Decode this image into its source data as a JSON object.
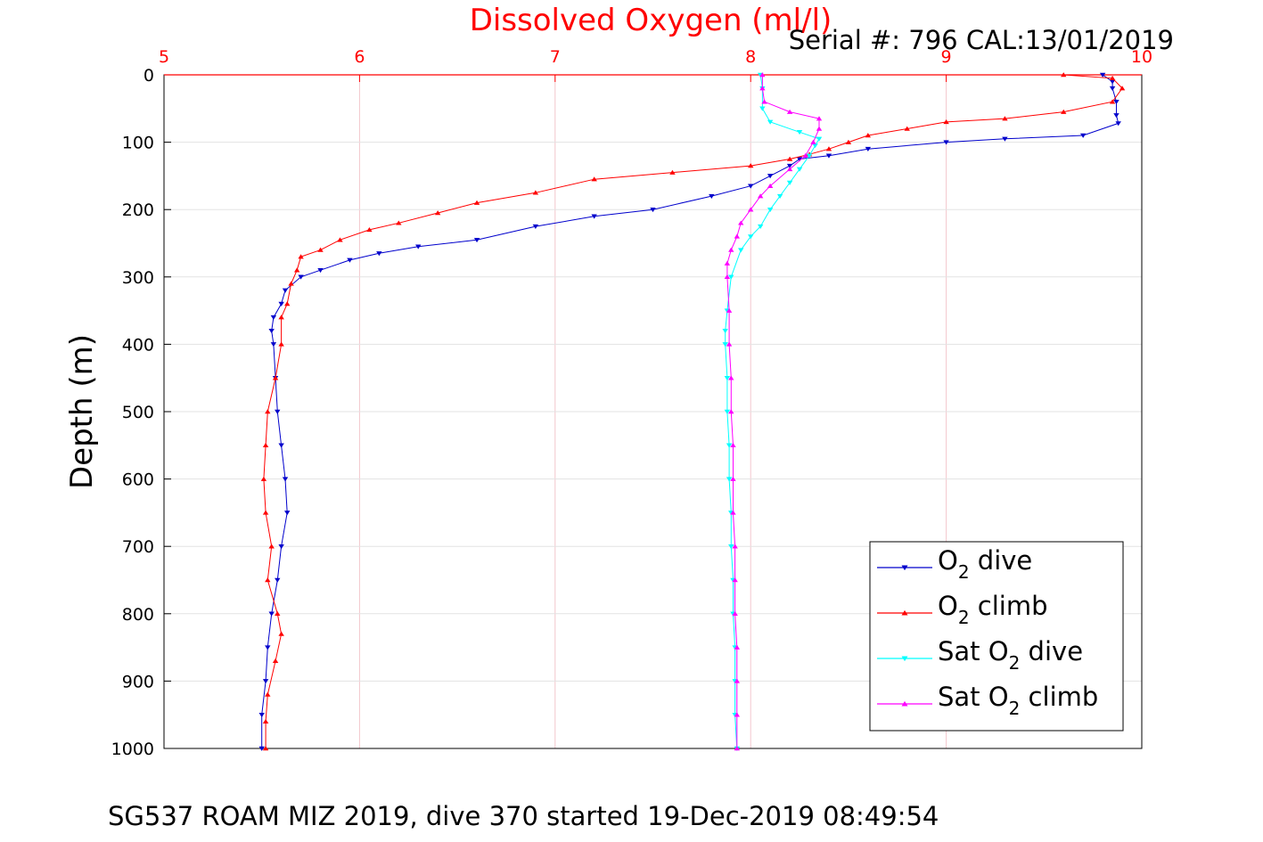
{
  "chart_data": {
    "type": "scatter",
    "title": "Dissolved Oxygen (ml/l)",
    "serial_text": "Serial #: 796  CAL:13/01/2019",
    "caption": "SG537 ROAM MIZ 2019, dive 370 started 19-Dec-2019 08:49:54",
    "xlabel": "Dissolved Oxygen (ml/l)",
    "ylabel": "Depth (m)",
    "xlim": [
      5,
      10
    ],
    "ylim": [
      0,
      1000
    ],
    "y_reversed": true,
    "x_axis_position": "top",
    "xticks": [
      5,
      6,
      7,
      8,
      9,
      10
    ],
    "yticks": [
      0,
      100,
      200,
      300,
      400,
      500,
      600,
      700,
      800,
      900,
      1000
    ],
    "grid": true,
    "legend_position": "bottom-right",
    "colors": {
      "o2_dive": "#0000cc",
      "o2_climb": "#ff0000",
      "sat_dive": "#00ffff",
      "sat_climb": "#ff00ff",
      "axis_x": "#ff0000",
      "grid": "#e6e6e6"
    },
    "legend": [
      {
        "pre": "O",
        "sub": "2",
        "post": " dive",
        "color": "#0000cc",
        "marker": "down"
      },
      {
        "pre": "O",
        "sub": "2",
        "post": " climb",
        "color": "#ff0000",
        "marker": "up"
      },
      {
        "pre": "Sat O",
        "sub": "2",
        "post": " dive",
        "color": "#00ffff",
        "marker": "down"
      },
      {
        "pre": "Sat O",
        "sub": "2",
        "post": " climb",
        "color": "#ff00ff",
        "marker": "up"
      }
    ],
    "series": [
      {
        "name": "O2 dive",
        "color": "#0000cc",
        "marker": "down",
        "points": [
          [
            9.8,
            0
          ],
          [
            9.85,
            10
          ],
          [
            9.85,
            20
          ],
          [
            9.87,
            40
          ],
          [
            9.87,
            60
          ],
          [
            9.88,
            72
          ],
          [
            9.7,
            90
          ],
          [
            9.3,
            95
          ],
          [
            9.0,
            100
          ],
          [
            8.6,
            110
          ],
          [
            8.4,
            120
          ],
          [
            8.25,
            125
          ],
          [
            8.2,
            135
          ],
          [
            8.1,
            150
          ],
          [
            8.0,
            165
          ],
          [
            7.8,
            180
          ],
          [
            7.5,
            200
          ],
          [
            7.2,
            210
          ],
          [
            6.9,
            225
          ],
          [
            6.6,
            245
          ],
          [
            6.3,
            255
          ],
          [
            6.1,
            265
          ],
          [
            5.95,
            275
          ],
          [
            5.8,
            290
          ],
          [
            5.7,
            300
          ],
          [
            5.62,
            320
          ],
          [
            5.6,
            340
          ],
          [
            5.56,
            360
          ],
          [
            5.55,
            380
          ],
          [
            5.56,
            400
          ],
          [
            5.57,
            450
          ],
          [
            5.58,
            500
          ],
          [
            5.6,
            550
          ],
          [
            5.62,
            600
          ],
          [
            5.63,
            650
          ],
          [
            5.6,
            700
          ],
          [
            5.58,
            750
          ],
          [
            5.55,
            800
          ],
          [
            5.53,
            850
          ],
          [
            5.52,
            900
          ],
          [
            5.5,
            950
          ],
          [
            5.5,
            1000
          ]
        ]
      },
      {
        "name": "O2 climb",
        "color": "#ff0000",
        "marker": "up",
        "points": [
          [
            9.6,
            0
          ],
          [
            9.85,
            5
          ],
          [
            9.9,
            20
          ],
          [
            9.85,
            40
          ],
          [
            9.6,
            55
          ],
          [
            9.3,
            65
          ],
          [
            9.0,
            70
          ],
          [
            8.8,
            80
          ],
          [
            8.6,
            90
          ],
          [
            8.5,
            100
          ],
          [
            8.4,
            110
          ],
          [
            8.3,
            118
          ],
          [
            8.2,
            125
          ],
          [
            8.0,
            135
          ],
          [
            7.6,
            145
          ],
          [
            7.2,
            155
          ],
          [
            6.9,
            175
          ],
          [
            6.6,
            190
          ],
          [
            6.4,
            205
          ],
          [
            6.2,
            220
          ],
          [
            6.05,
            230
          ],
          [
            5.9,
            245
          ],
          [
            5.8,
            260
          ],
          [
            5.7,
            270
          ],
          [
            5.68,
            290
          ],
          [
            5.65,
            310
          ],
          [
            5.63,
            340
          ],
          [
            5.6,
            360
          ],
          [
            5.6,
            400
          ],
          [
            5.57,
            450
          ],
          [
            5.53,
            500
          ],
          [
            5.52,
            550
          ],
          [
            5.51,
            600
          ],
          [
            5.52,
            650
          ],
          [
            5.55,
            700
          ],
          [
            5.53,
            750
          ],
          [
            5.58,
            800
          ],
          [
            5.6,
            830
          ],
          [
            5.57,
            870
          ],
          [
            5.53,
            920
          ],
          [
            5.52,
            960
          ],
          [
            5.52,
            1000
          ]
        ]
      },
      {
        "name": "Sat O2 dive",
        "color": "#00ffff",
        "marker": "down",
        "points": [
          [
            8.05,
            0
          ],
          [
            8.06,
            20
          ],
          [
            8.06,
            50
          ],
          [
            8.1,
            70
          ],
          [
            8.25,
            85
          ],
          [
            8.35,
            95
          ],
          [
            8.33,
            105
          ],
          [
            8.3,
            120
          ],
          [
            8.25,
            140
          ],
          [
            8.2,
            160
          ],
          [
            8.15,
            180
          ],
          [
            8.1,
            200
          ],
          [
            8.05,
            225
          ],
          [
            8.0,
            240
          ],
          [
            7.95,
            260
          ],
          [
            7.9,
            300
          ],
          [
            7.88,
            350
          ],
          [
            7.87,
            380
          ],
          [
            7.87,
            400
          ],
          [
            7.88,
            450
          ],
          [
            7.88,
            500
          ],
          [
            7.89,
            550
          ],
          [
            7.89,
            600
          ],
          [
            7.9,
            650
          ],
          [
            7.9,
            700
          ],
          [
            7.91,
            750
          ],
          [
            7.91,
            800
          ],
          [
            7.92,
            850
          ],
          [
            7.92,
            900
          ],
          [
            7.92,
            950
          ],
          [
            7.93,
            1000
          ]
        ]
      },
      {
        "name": "Sat O2 climb",
        "color": "#ff00ff",
        "marker": "up",
        "points": [
          [
            8.06,
            0
          ],
          [
            8.06,
            20
          ],
          [
            8.07,
            40
          ],
          [
            8.2,
            55
          ],
          [
            8.35,
            65
          ],
          [
            8.35,
            80
          ],
          [
            8.32,
            100
          ],
          [
            8.28,
            120
          ],
          [
            8.2,
            140
          ],
          [
            8.1,
            165
          ],
          [
            8.05,
            180
          ],
          [
            8.0,
            200
          ],
          [
            7.95,
            220
          ],
          [
            7.93,
            240
          ],
          [
            7.9,
            260
          ],
          [
            7.88,
            280
          ],
          [
            7.88,
            300
          ],
          [
            7.89,
            350
          ],
          [
            7.89,
            400
          ],
          [
            7.9,
            450
          ],
          [
            7.9,
            500
          ],
          [
            7.91,
            550
          ],
          [
            7.91,
            600
          ],
          [
            7.91,
            650
          ],
          [
            7.92,
            700
          ],
          [
            7.92,
            750
          ],
          [
            7.92,
            800
          ],
          [
            7.93,
            850
          ],
          [
            7.93,
            900
          ],
          [
            7.93,
            950
          ],
          [
            7.93,
            1000
          ]
        ]
      }
    ]
  }
}
